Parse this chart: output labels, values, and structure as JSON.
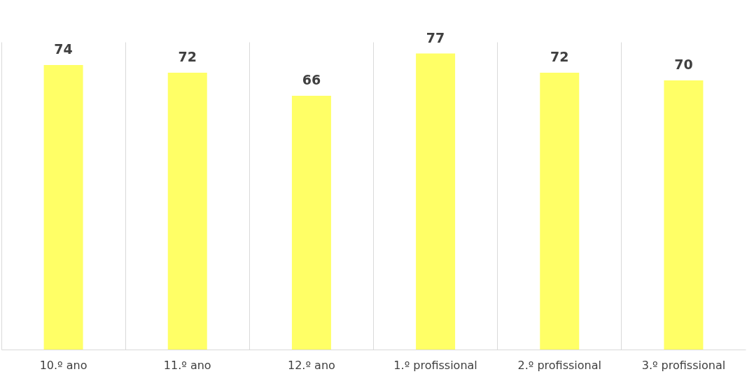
{
  "chart_data": {
    "type": "bar",
    "categories": [
      "10.º ano",
      "11.º ano",
      "12.º ano",
      "1.º profissional",
      "2.º profissional",
      "3.º profissional"
    ],
    "values": [
      74,
      72,
      66,
      77,
      72,
      70
    ],
    "color": "#ffff66",
    "data_labels": true,
    "grid": "x",
    "tick_labels": "x"
  }
}
